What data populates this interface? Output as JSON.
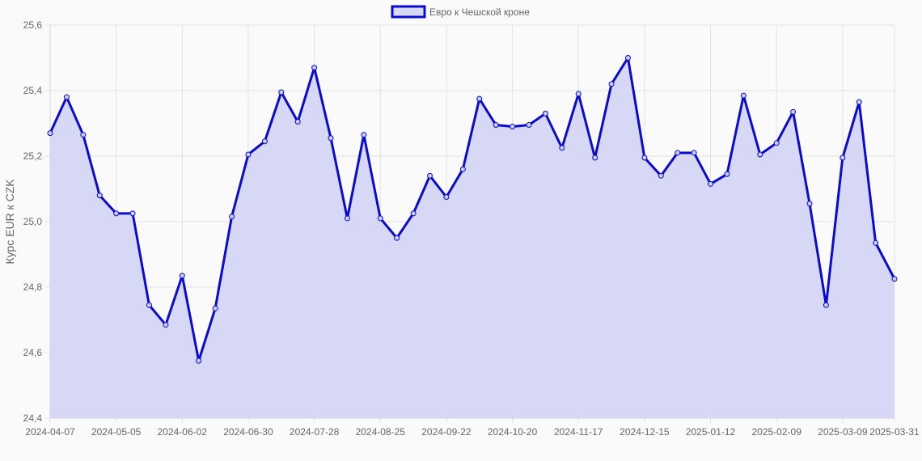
{
  "chart_data": {
    "type": "area",
    "ylabel": "Курс EUR к CZK",
    "xlabel": "",
    "ylim": [
      24.4,
      25.6
    ],
    "y_ticks": [
      "25,6",
      "25,4",
      "25,2",
      "25,0",
      "24,8",
      "24,6",
      "24,4"
    ],
    "x_ticks": [
      "2024-04-07",
      "2024-05-05",
      "2024-06-02",
      "2024-06-30",
      "2024-07-28",
      "2024-08-25",
      "2024-09-22",
      "2024-10-20",
      "2024-11-17",
      "2024-12-15",
      "2025-01-12",
      "2025-02-09",
      "2025-03-09",
      "2025-03-31"
    ],
    "grid": true,
    "legend_position": "top-center",
    "series": [
      {
        "name": "Евро к Чешской кроне",
        "color": "#0a0ad0",
        "fill": "#d6d8f6",
        "x": [
          "2024-04-07",
          "2024-04-14",
          "2024-04-21",
          "2024-04-28",
          "2024-05-05",
          "2024-05-12",
          "2024-05-19",
          "2024-05-26",
          "2024-06-02",
          "2024-06-09",
          "2024-06-16",
          "2024-06-23",
          "2024-06-30",
          "2024-07-07",
          "2024-07-14",
          "2024-07-21",
          "2024-07-28",
          "2024-08-04",
          "2024-08-11",
          "2024-08-18",
          "2024-08-25",
          "2024-09-01",
          "2024-09-08",
          "2024-09-15",
          "2024-09-22",
          "2024-09-29",
          "2024-10-06",
          "2024-10-13",
          "2024-10-20",
          "2024-10-27",
          "2024-11-03",
          "2024-11-10",
          "2024-11-17",
          "2024-11-24",
          "2024-12-01",
          "2024-12-08",
          "2024-12-15",
          "2024-12-22",
          "2024-12-29",
          "2025-01-05",
          "2025-01-12",
          "2025-01-19",
          "2025-01-26",
          "2025-02-02",
          "2025-02-09",
          "2025-02-16",
          "2025-02-23",
          "2025-03-02",
          "2025-03-09",
          "2025-03-16",
          "2025-03-23",
          "2025-03-31"
        ],
        "values": [
          25.27,
          25.38,
          25.265,
          25.08,
          25.025,
          25.025,
          24.745,
          24.685,
          24.835,
          24.575,
          24.735,
          25.015,
          25.205,
          25.245,
          25.395,
          25.305,
          25.47,
          25.255,
          25.01,
          25.265,
          25.01,
          24.95,
          25.025,
          25.14,
          25.075,
          25.16,
          25.375,
          25.295,
          25.29,
          25.295,
          25.33,
          25.225,
          25.39,
          25.195,
          25.42,
          25.5,
          25.195,
          25.14,
          25.21,
          25.21,
          25.115,
          25.145,
          25.385,
          25.205,
          25.24,
          25.335,
          25.055,
          24.745,
          25.195,
          25.365,
          24.935,
          24.825
        ]
      }
    ]
  }
}
